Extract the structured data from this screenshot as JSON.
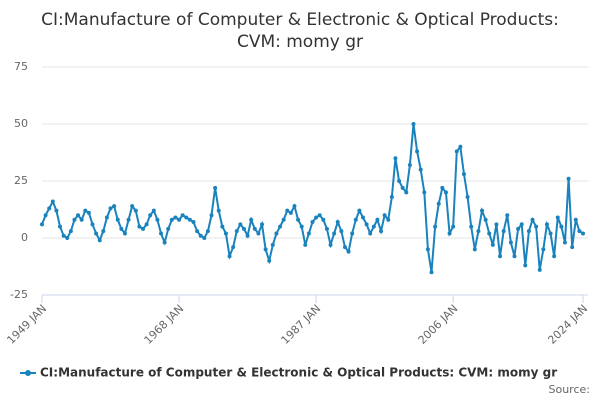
{
  "chart_data": {
    "type": "line",
    "title": "CI:Manufacture of Computer & Electronic & Optical Products: CVM: momy gr",
    "x": [
      "1949-01",
      "1949-07",
      "1950-01",
      "1950-07",
      "1951-01",
      "1951-07",
      "1952-01",
      "1952-07",
      "1953-01",
      "1953-07",
      "1954-01",
      "1954-07",
      "1955-01",
      "1955-07",
      "1956-01",
      "1956-07",
      "1957-01",
      "1957-07",
      "1958-01",
      "1958-07",
      "1959-01",
      "1959-07",
      "1960-01",
      "1960-07",
      "1961-01",
      "1961-07",
      "1962-01",
      "1962-07",
      "1963-01",
      "1963-07",
      "1964-01",
      "1964-07",
      "1965-01",
      "1965-07",
      "1966-01",
      "1966-07",
      "1967-01",
      "1967-07",
      "1968-01",
      "1968-07",
      "1969-01",
      "1969-07",
      "1970-01",
      "1970-07",
      "1971-01",
      "1971-07",
      "1972-01",
      "1972-07",
      "1973-01",
      "1973-07",
      "1974-01",
      "1974-07",
      "1975-01",
      "1975-07",
      "1976-01",
      "1976-07",
      "1977-01",
      "1977-07",
      "1978-01",
      "1978-07",
      "1979-01",
      "1979-07",
      "1980-01",
      "1980-07",
      "1981-01",
      "1981-07",
      "1982-01",
      "1982-07",
      "1983-01",
      "1983-07",
      "1984-01",
      "1984-07",
      "1985-01",
      "1985-07",
      "1986-01",
      "1986-07",
      "1987-01",
      "1987-07",
      "1988-01",
      "1988-07",
      "1989-01",
      "1989-07",
      "1990-01",
      "1990-07",
      "1991-01",
      "1991-07",
      "1992-01",
      "1992-07",
      "1993-01",
      "1993-07",
      "1994-01",
      "1994-07",
      "1995-01",
      "1995-07",
      "1996-01",
      "1996-07",
      "1997-01",
      "1997-07",
      "1998-01",
      "1998-07",
      "1999-01",
      "1999-07",
      "2000-01",
      "2000-07",
      "2001-01",
      "2001-07",
      "2002-01",
      "2002-07",
      "2003-01",
      "2003-07",
      "2004-01",
      "2004-07",
      "2005-01",
      "2005-07",
      "2006-01",
      "2006-07",
      "2007-01",
      "2007-07",
      "2008-01",
      "2008-07",
      "2009-01",
      "2009-07",
      "2010-01",
      "2010-07",
      "2011-01",
      "2011-07",
      "2012-01",
      "2012-07",
      "2013-01",
      "2013-07",
      "2014-01",
      "2014-07",
      "2015-01",
      "2015-07",
      "2016-01",
      "2016-07",
      "2017-01",
      "2017-07",
      "2018-01",
      "2018-07",
      "2019-01",
      "2019-07",
      "2020-01",
      "2020-07",
      "2021-01",
      "2021-07",
      "2022-01",
      "2022-07",
      "2023-01",
      "2023-07",
      "2024-01"
    ],
    "series": [
      {
        "name": "CI:Manufacture of Computer & Electronic & Optical Products: CVM: momy gr",
        "color": "#1a83bd",
        "values": [
          6,
          10,
          13,
          16,
          12,
          5,
          1,
          0,
          3,
          8,
          10,
          8,
          12,
          11,
          6,
          2,
          -1,
          3,
          9,
          13,
          14,
          8,
          4,
          2,
          8,
          14,
          12,
          5,
          4,
          6,
          10,
          12,
          8,
          2,
          -2,
          4,
          8,
          9,
          8,
          10,
          9,
          8,
          7,
          3,
          1,
          0,
          3,
          10,
          22,
          12,
          5,
          2,
          -8,
          -4,
          3,
          6,
          4,
          1,
          8,
          4,
          2,
          6,
          -5,
          -10,
          -3,
          2,
          5,
          8,
          12,
          11,
          14,
          8,
          5,
          -3,
          2,
          7,
          9,
          10,
          8,
          4,
          -3,
          2,
          7,
          3,
          -4,
          -6,
          2,
          8,
          12,
          9,
          6,
          2,
          5,
          8,
          3,
          10,
          8,
          18,
          35,
          25,
          22,
          20,
          32,
          50,
          38,
          30,
          20,
          -5,
          -15,
          5,
          15,
          22,
          20,
          2,
          5,
          38,
          40,
          28,
          18,
          5,
          -5,
          3,
          12,
          8,
          2,
          -3,
          6,
          -8,
          3,
          10,
          -2,
          -8,
          4,
          6,
          -12,
          3,
          8,
          5,
          -14,
          -5,
          6,
          2,
          -8,
          9,
          5,
          -2,
          26,
          -4,
          8,
          3,
          2
        ]
      }
    ],
    "xlim": [
      "1949-01",
      "2024-01"
    ],
    "xticks": [
      {
        "value": "1949-01",
        "label": "1949 JAN"
      },
      {
        "value": "1968-01",
        "label": "1968 JAN"
      },
      {
        "value": "1987-01",
        "label": "1987 JAN"
      },
      {
        "value": "2006-01",
        "label": "2006 JAN"
      },
      {
        "value": "2024-01",
        "label": "2024 JAN"
      }
    ],
    "ylim": [
      -25,
      75
    ],
    "yticks": [
      -25,
      0,
      25,
      50,
      75
    ],
    "grid": true,
    "legend": "bottom",
    "source": "Source:"
  }
}
